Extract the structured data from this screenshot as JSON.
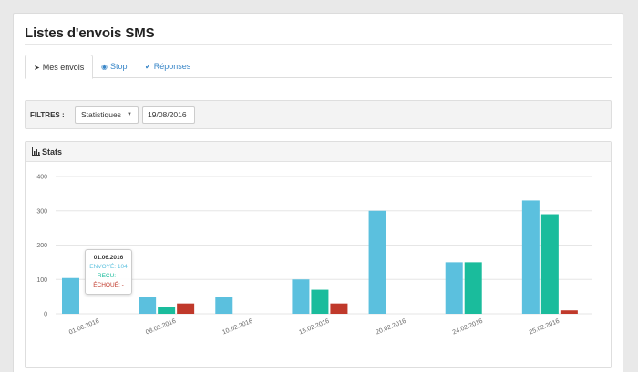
{
  "header": {
    "title": "Listes d'envois SMS"
  },
  "tabs": [
    {
      "label": "Mes envois",
      "icon": "paper-plane-icon",
      "active": true
    },
    {
      "label": "Stop",
      "icon": "circle-dot-icon",
      "active": false
    },
    {
      "label": "Réponses",
      "icon": "check-icon",
      "active": false
    }
  ],
  "filters": {
    "label": "FILTRES :",
    "select_value": "Statistiques",
    "date_value": "19/08/2016"
  },
  "stats": {
    "title": "Stats",
    "icon": "bar-chart-icon"
  },
  "chart_data": {
    "type": "bar",
    "categories": [
      "01.06.2016",
      "08.02.2016",
      "10.02.2016",
      "15.02.2016",
      "20.02.2016",
      "24.02.2016",
      "25.02.2016"
    ],
    "ylim": [
      0,
      400
    ],
    "yticks": [
      0,
      100,
      200,
      300,
      400
    ],
    "grid": true,
    "series": [
      {
        "name": "ENVOYÉ",
        "color": "#5bc0de",
        "values": [
          104,
          50,
          50,
          100,
          300,
          150,
          330
        ]
      },
      {
        "name": "REÇU",
        "color": "#1abc9c",
        "values": [
          0,
          20,
          0,
          70,
          0,
          150,
          290
        ]
      },
      {
        "name": "ÉCHOUÉ",
        "color": "#c0392b",
        "values": [
          0,
          30,
          0,
          30,
          0,
          0,
          10
        ]
      }
    ]
  },
  "tooltip": {
    "title": "01.06.2016",
    "sent": "ENVOYÉ: 104",
    "received": "REÇU: -",
    "failed": "ÉCHOUÉ: -"
  }
}
